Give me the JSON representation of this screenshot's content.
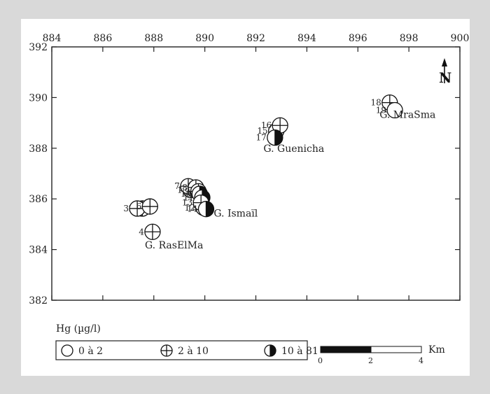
{
  "chart_data": {
    "type": "scatter",
    "title": "",
    "xlabel": "",
    "ylabel": "",
    "xlim": [
      884,
      900
    ],
    "ylim": [
      382,
      392
    ],
    "x_ticks": [
      "884",
      "886",
      "888",
      "890",
      "892",
      "894",
      "896",
      "898",
      "900"
    ],
    "y_ticks": [
      "382",
      "384",
      "386",
      "388",
      "390",
      "392"
    ],
    "grid": false,
    "legend_title": "Hg (µg/l)",
    "legend_placement": "bottom-left",
    "categories": [
      {
        "key": "low",
        "label": "0 à 2"
      },
      {
        "key": "mid",
        "label": "2 à 10"
      },
      {
        "key": "high",
        "label": "10 à 81"
      }
    ],
    "points": [
      {
        "id": "1",
        "x": 889.45,
        "y": 386.35,
        "cat": "mid"
      },
      {
        "id": "2",
        "x": 887.55,
        "y": 385.62,
        "cat": "mid"
      },
      {
        "id": "3",
        "x": 887.35,
        "y": 385.62,
        "cat": "mid"
      },
      {
        "id": "4",
        "x": 887.95,
        "y": 384.7,
        "cat": "mid"
      },
      {
        "id": "5",
        "x": 889.55,
        "y": 386.4,
        "cat": "mid"
      },
      {
        "id": "6",
        "x": 887.85,
        "y": 385.7,
        "cat": "mid"
      },
      {
        "id": "7",
        "x": 889.35,
        "y": 386.5,
        "cat": "mid"
      },
      {
        "id": "8",
        "x": 889.65,
        "y": 386.45,
        "cat": "mid"
      },
      {
        "id": "9",
        "x": 889.75,
        "y": 386.3,
        "cat": "mid"
      },
      {
        "id": "10",
        "x": 889.8,
        "y": 386.2,
        "cat": "high"
      },
      {
        "id": "11",
        "x": 889.9,
        "y": 386.05,
        "cat": "high"
      },
      {
        "id": "12",
        "x": 889.95,
        "y": 385.65,
        "cat": "low"
      },
      {
        "id": "13",
        "x": 889.85,
        "y": 385.85,
        "cat": "mid"
      },
      {
        "id": "14",
        "x": 890.05,
        "y": 385.6,
        "cat": "high"
      },
      {
        "id": "15",
        "x": 892.8,
        "y": 388.68,
        "cat": "low"
      },
      {
        "id": "16",
        "x": 892.95,
        "y": 388.9,
        "cat": "mid"
      },
      {
        "id": "17",
        "x": 892.75,
        "y": 388.42,
        "cat": "high"
      },
      {
        "id": "18",
        "x": 897.25,
        "y": 389.8,
        "cat": "mid"
      },
      {
        "id": "19",
        "x": 897.45,
        "y": 389.5,
        "cat": "low"
      }
    ],
    "annotations": [
      {
        "text": "G. MraSma",
        "x": 896.85,
        "y": 389.2
      },
      {
        "text": "G. Guenicha",
        "x": 892.3,
        "y": 387.85
      },
      {
        "text": "G. Ismaïl",
        "x": 890.35,
        "y": 385.3
      },
      {
        "text": "G. RasElMa",
        "x": 887.65,
        "y": 384.05
      }
    ],
    "north_arrow": "N",
    "scale_bar": {
      "labels": [
        "0",
        "2",
        "4"
      ],
      "unit": "Km"
    }
  }
}
